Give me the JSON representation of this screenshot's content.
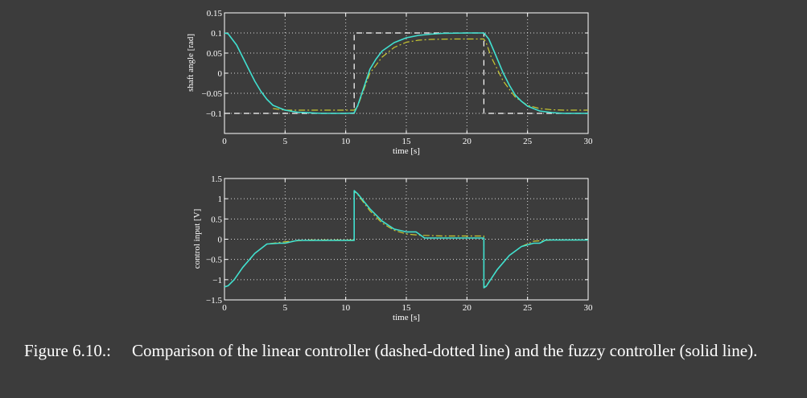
{
  "chart_data": [
    {
      "type": "line",
      "ylabel": "shaft angle [rad]",
      "xlabel": "time [s]",
      "xlim": [
        0,
        30
      ],
      "ylim": [
        -0.15,
        0.15
      ],
      "xticks": [
        "0",
        "5",
        "10",
        "15",
        "20",
        "25",
        "30"
      ],
      "yticks": [
        "−0.1",
        "−0.05",
        "0",
        "0.05",
        "0.1",
        "0.15"
      ],
      "ytick_values": [
        -0.1,
        -0.05,
        0,
        0.05,
        0.1,
        0.15
      ],
      "grid": true,
      "colors": {
        "reference": "#ffffff",
        "linear": "#c8c832",
        "fuzzy": "#40e0d0"
      },
      "series": [
        {
          "key": "reference",
          "style": "dashed",
          "x": [
            0,
            10.7,
            10.7,
            21.4,
            21.4,
            30
          ],
          "y": [
            -0.1,
            -0.1,
            0.1,
            0.1,
            -0.1,
            -0.1
          ]
        },
        {
          "key": "linear",
          "style": "dashdot",
          "x": [
            4,
            5,
            6,
            8,
            10,
            10.7,
            11,
            11.5,
            12,
            13,
            14,
            15,
            16,
            17,
            19,
            21,
            21.4,
            21.6,
            22,
            23,
            24,
            25,
            26,
            27,
            28,
            30
          ],
          "y": [
            -0.088,
            -0.092,
            -0.092,
            -0.092,
            -0.092,
            -0.092,
            -0.082,
            -0.04,
            0.0,
            0.04,
            0.064,
            0.077,
            0.082,
            0.084,
            0.085,
            0.085,
            0.085,
            0.075,
            0.04,
            -0.02,
            -0.06,
            -0.08,
            -0.088,
            -0.091,
            -0.092,
            -0.092
          ]
        },
        {
          "key": "fuzzy",
          "style": "solid",
          "x": [
            0,
            0.3,
            1,
            1.5,
            2,
            2.5,
            3,
            3.5,
            4,
            5,
            6,
            8,
            10,
            10.7,
            11,
            11.5,
            12,
            12.5,
            13,
            14,
            15,
            16,
            17,
            18,
            20,
            21,
            21.4,
            21.8,
            22.3,
            23,
            23.5,
            24,
            24.5,
            25,
            26,
            27,
            28,
            30
          ],
          "y": [
            0.1,
            0.098,
            0.07,
            0.04,
            0.01,
            -0.02,
            -0.045,
            -0.065,
            -0.08,
            -0.092,
            -0.097,
            -0.1,
            -0.1,
            -0.099,
            -0.08,
            -0.035,
            0.01,
            0.035,
            0.055,
            0.076,
            0.088,
            0.094,
            0.097,
            0.099,
            0.1,
            0.1,
            0.1,
            0.085,
            0.05,
            0.0,
            -0.03,
            -0.055,
            -0.07,
            -0.082,
            -0.094,
            -0.098,
            -0.1,
            -0.1
          ]
        }
      ]
    },
    {
      "type": "line",
      "ylabel": "control input [V]",
      "xlabel": "time [s]",
      "xlim": [
        0,
        30
      ],
      "ylim": [
        -1.5,
        1.5
      ],
      "xticks": [
        "0",
        "5",
        "10",
        "15",
        "20",
        "25",
        "30"
      ],
      "yticks": [
        "−1.5",
        "−1",
        "−0.5",
        "0",
        "0.5",
        "1",
        "1.5"
      ],
      "ytick_values": [
        -1.5,
        -1,
        -0.5,
        0,
        0.5,
        1,
        1.5
      ],
      "grid": true,
      "colors": {
        "linear": "#c8c832",
        "fuzzy": "#40e0d0"
      },
      "series": [
        {
          "key": "linear",
          "style": "dashdot",
          "x": [
            0,
            0.3,
            0.8,
            1.5,
            2.5,
            3.5,
            4.5,
            5.5,
            7,
            9,
            10.7,
            10.7,
            11,
            12,
            13,
            14,
            15,
            16,
            18,
            21.4,
            21.4,
            21.6,
            22.5,
            23.5,
            24.5,
            25.5,
            27,
            30
          ],
          "y": [
            -1.18,
            -1.15,
            -1.0,
            -0.7,
            -0.35,
            -0.12,
            -0.08,
            -0.05,
            -0.02,
            -0.02,
            -0.02,
            1.18,
            1.1,
            0.7,
            0.4,
            0.22,
            0.13,
            0.1,
            0.08,
            0.08,
            -1.18,
            -1.15,
            -0.75,
            -0.4,
            -0.18,
            -0.05,
            -0.02,
            -0.02
          ]
        },
        {
          "key": "fuzzy",
          "style": "solid",
          "x": [
            0,
            0.3,
            0.8,
            1.5,
            2.5,
            3.5,
            4.5,
            5,
            6,
            8,
            10.7,
            10.7,
            11,
            12,
            13,
            14,
            15,
            15.8,
            16.5,
            18,
            21.4,
            21.4,
            21.6,
            22.5,
            23.5,
            24.5,
            25.5,
            26,
            26.5,
            28,
            30
          ],
          "y": [
            -1.18,
            -1.15,
            -1.0,
            -0.7,
            -0.35,
            -0.12,
            -0.1,
            -0.1,
            -0.03,
            -0.03,
            -0.03,
            1.2,
            1.12,
            0.75,
            0.45,
            0.25,
            0.18,
            0.18,
            0.03,
            0.03,
            0.03,
            -1.2,
            -1.16,
            -0.75,
            -0.4,
            -0.18,
            -0.1,
            -0.1,
            -0.02,
            -0.02,
            -0.02
          ]
        }
      ]
    }
  ],
  "caption": {
    "number": "Figure 6.10.:",
    "text": "Comparison of the linear controller (dashed-dotted line) and the fuzzy controller (solid line)."
  }
}
